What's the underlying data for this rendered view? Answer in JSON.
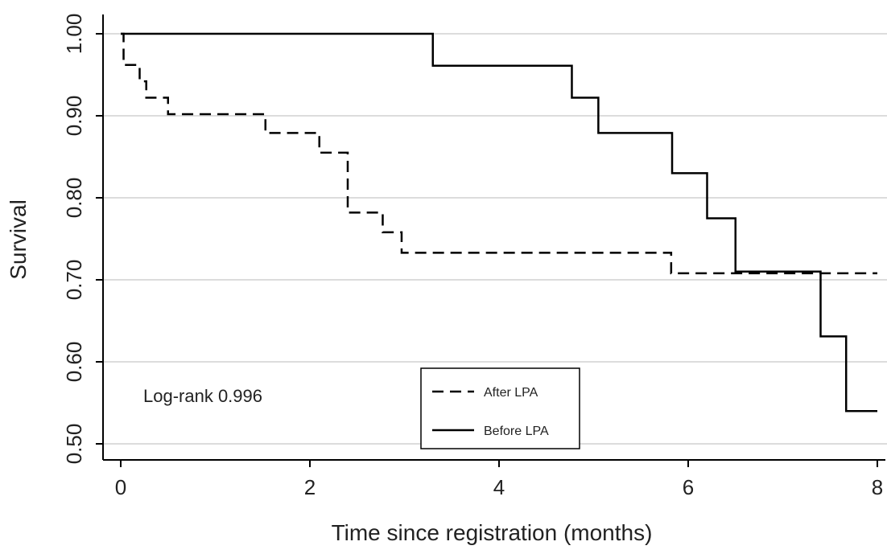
{
  "chart_data": {
    "type": "line",
    "title": "",
    "xlabel": "Time since registration (months)",
    "ylabel": "Survival",
    "xlim": [
      0,
      8
    ],
    "ylim": [
      0.5,
      1.0
    ],
    "x_ticks": [
      {
        "value": 0,
        "label": "0"
      },
      {
        "value": 2,
        "label": "2"
      },
      {
        "value": 4,
        "label": "4"
      },
      {
        "value": 6,
        "label": "6"
      },
      {
        "value": 8,
        "label": "8"
      }
    ],
    "y_ticks": [
      {
        "value": 0.5,
        "label": "0.50"
      },
      {
        "value": 0.6,
        "label": "0.60"
      },
      {
        "value": 0.7,
        "label": "0.70"
      },
      {
        "value": 0.8,
        "label": "0.80"
      },
      {
        "value": 0.9,
        "label": "0.90"
      },
      {
        "value": 1.0,
        "label": "1.00"
      }
    ],
    "grid": "horizontal",
    "legend_position": "bottom-center",
    "step": true,
    "series": [
      {
        "name": "After LPA",
        "style": "dashed",
        "color": "#000000",
        "points": [
          [
            0.0,
            1.0
          ],
          [
            0.03,
            0.962
          ],
          [
            0.2,
            0.942
          ],
          [
            0.27,
            0.922
          ],
          [
            0.5,
            0.902
          ],
          [
            1.53,
            0.879
          ],
          [
            2.1,
            0.855
          ],
          [
            2.4,
            0.782
          ],
          [
            2.77,
            0.758
          ],
          [
            2.97,
            0.733
          ],
          [
            5.82,
            0.708
          ],
          [
            8.0,
            0.708
          ]
        ]
      },
      {
        "name": "Before LPA",
        "style": "solid",
        "color": "#000000",
        "points": [
          [
            0.0,
            1.0
          ],
          [
            3.3,
            0.961
          ],
          [
            4.77,
            0.922
          ],
          [
            5.05,
            0.879
          ],
          [
            5.83,
            0.83
          ],
          [
            6.2,
            0.775
          ],
          [
            6.5,
            0.71
          ],
          [
            7.4,
            0.631
          ],
          [
            7.67,
            0.54
          ],
          [
            8.0,
            0.54
          ]
        ]
      }
    ],
    "annotation": "Log-rank 0.996"
  },
  "colors": {
    "axis": "#000000",
    "grid": "#dcdcdc",
    "text": "#222222"
  }
}
